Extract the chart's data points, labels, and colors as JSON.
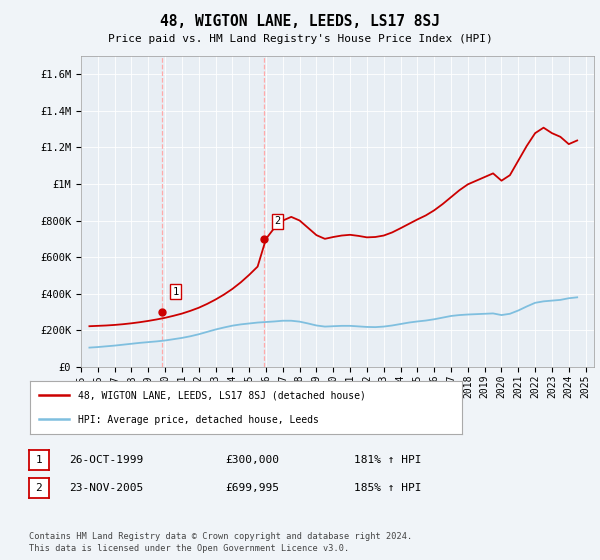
{
  "title": "48, WIGTON LANE, LEEDS, LS17 8SJ",
  "subtitle": "Price paid vs. HM Land Registry's House Price Index (HPI)",
  "hpi_color": "#7fbfdf",
  "price_color": "#cc0000",
  "bg_color": "#f0f4f8",
  "plot_bg_color": "#e8eef4",
  "grid_color": "#ffffff",
  "ylim": [
    0,
    1700000
  ],
  "yticks": [
    0,
    200000,
    400000,
    600000,
    800000,
    1000000,
    1200000,
    1400000,
    1600000
  ],
  "ytick_labels": [
    "£0",
    "£200K",
    "£400K",
    "£600K",
    "£800K",
    "£1M",
    "£1.2M",
    "£1.4M",
    "£1.6M"
  ],
  "sale1_x": 1999.83,
  "sale1_y": 300000,
  "sale1_label": "1",
  "sale2_x": 2005.9,
  "sale2_y": 699995,
  "sale2_label": "2",
  "sale_vline_color": "#ffaaaa",
  "legend_label_price": "48, WIGTON LANE, LEEDS, LS17 8SJ (detached house)",
  "legend_label_hpi": "HPI: Average price, detached house, Leeds",
  "table_rows": [
    [
      "1",
      "26-OCT-1999",
      "£300,000",
      "181% ↑ HPI"
    ],
    [
      "2",
      "23-NOV-2005",
      "£699,995",
      "185% ↑ HPI"
    ]
  ],
  "footer": "Contains HM Land Registry data © Crown copyright and database right 2024.\nThis data is licensed under the Open Government Licence v3.0.",
  "hpi_years": [
    1995.5,
    1996.0,
    1996.5,
    1997.0,
    1997.5,
    1998.0,
    1998.5,
    1999.0,
    1999.5,
    2000.0,
    2000.5,
    2001.0,
    2001.5,
    2002.0,
    2002.5,
    2003.0,
    2003.5,
    2004.0,
    2004.5,
    2005.0,
    2005.5,
    2006.0,
    2006.5,
    2007.0,
    2007.5,
    2008.0,
    2008.5,
    2009.0,
    2009.5,
    2010.0,
    2010.5,
    2011.0,
    2011.5,
    2012.0,
    2012.5,
    2013.0,
    2013.5,
    2014.0,
    2014.5,
    2015.0,
    2015.5,
    2016.0,
    2016.5,
    2017.0,
    2017.5,
    2018.0,
    2018.5,
    2019.0,
    2019.5,
    2020.0,
    2020.5,
    2021.0,
    2021.5,
    2022.0,
    2022.5,
    2023.0,
    2023.5,
    2024.0,
    2024.5
  ],
  "hpi_values": [
    105000,
    108000,
    112000,
    116000,
    121000,
    126000,
    131000,
    135000,
    139000,
    144000,
    151000,
    158000,
    167000,
    178000,
    191000,
    204000,
    215000,
    225000,
    232000,
    237000,
    242000,
    245000,
    248000,
    252000,
    252000,
    247000,
    237000,
    226000,
    220000,
    222000,
    224000,
    224000,
    221000,
    218000,
    217000,
    220000,
    226000,
    234000,
    242000,
    248000,
    253000,
    260000,
    269000,
    278000,
    283000,
    286000,
    288000,
    290000,
    292000,
    283000,
    290000,
    308000,
    330000,
    350000,
    358000,
    362000,
    366000,
    375000,
    380000
  ],
  "price_years": [
    1995.5,
    1996.0,
    1996.5,
    1997.0,
    1997.5,
    1998.0,
    1998.5,
    1999.0,
    1999.5,
    2000.0,
    2000.5,
    2001.0,
    2001.5,
    2002.0,
    2002.5,
    2003.0,
    2003.5,
    2004.0,
    2004.5,
    2005.0,
    2005.5,
    2006.0,
    2006.5,
    2007.0,
    2007.5,
    2008.0,
    2008.5,
    2009.0,
    2009.5,
    2010.0,
    2010.5,
    2011.0,
    2011.5,
    2012.0,
    2012.5,
    2013.0,
    2013.5,
    2014.0,
    2014.5,
    2015.0,
    2015.5,
    2016.0,
    2016.5,
    2017.0,
    2017.5,
    2018.0,
    2018.5,
    2019.0,
    2019.5,
    2020.0,
    2020.5,
    2021.0,
    2021.5,
    2022.0,
    2022.5,
    2023.0,
    2023.5,
    2024.0,
    2024.5
  ],
  "price_values": [
    222000,
    224000,
    226000,
    229000,
    233000,
    238000,
    244000,
    251000,
    259000,
    268000,
    279000,
    291000,
    306000,
    323000,
    344000,
    368000,
    395000,
    426000,
    462000,
    503000,
    548000,
    700000,
    760000,
    800000,
    820000,
    800000,
    760000,
    720000,
    700000,
    710000,
    718000,
    722000,
    716000,
    708000,
    710000,
    718000,
    735000,
    758000,
    782000,
    806000,
    828000,
    856000,
    890000,
    928000,
    966000,
    998000,
    1018000,
    1038000,
    1058000,
    1018000,
    1048000,
    1128000,
    1208000,
    1278000,
    1308000,
    1278000,
    1258000,
    1218000,
    1238000
  ],
  "xlim_left": 1995.0,
  "xlim_right": 2025.5,
  "xtick_years": [
    1995,
    1996,
    1997,
    1998,
    1999,
    2000,
    2001,
    2002,
    2003,
    2004,
    2005,
    2006,
    2007,
    2008,
    2009,
    2010,
    2011,
    2012,
    2013,
    2014,
    2015,
    2016,
    2017,
    2018,
    2019,
    2020,
    2021,
    2022,
    2023,
    2024,
    2025
  ]
}
